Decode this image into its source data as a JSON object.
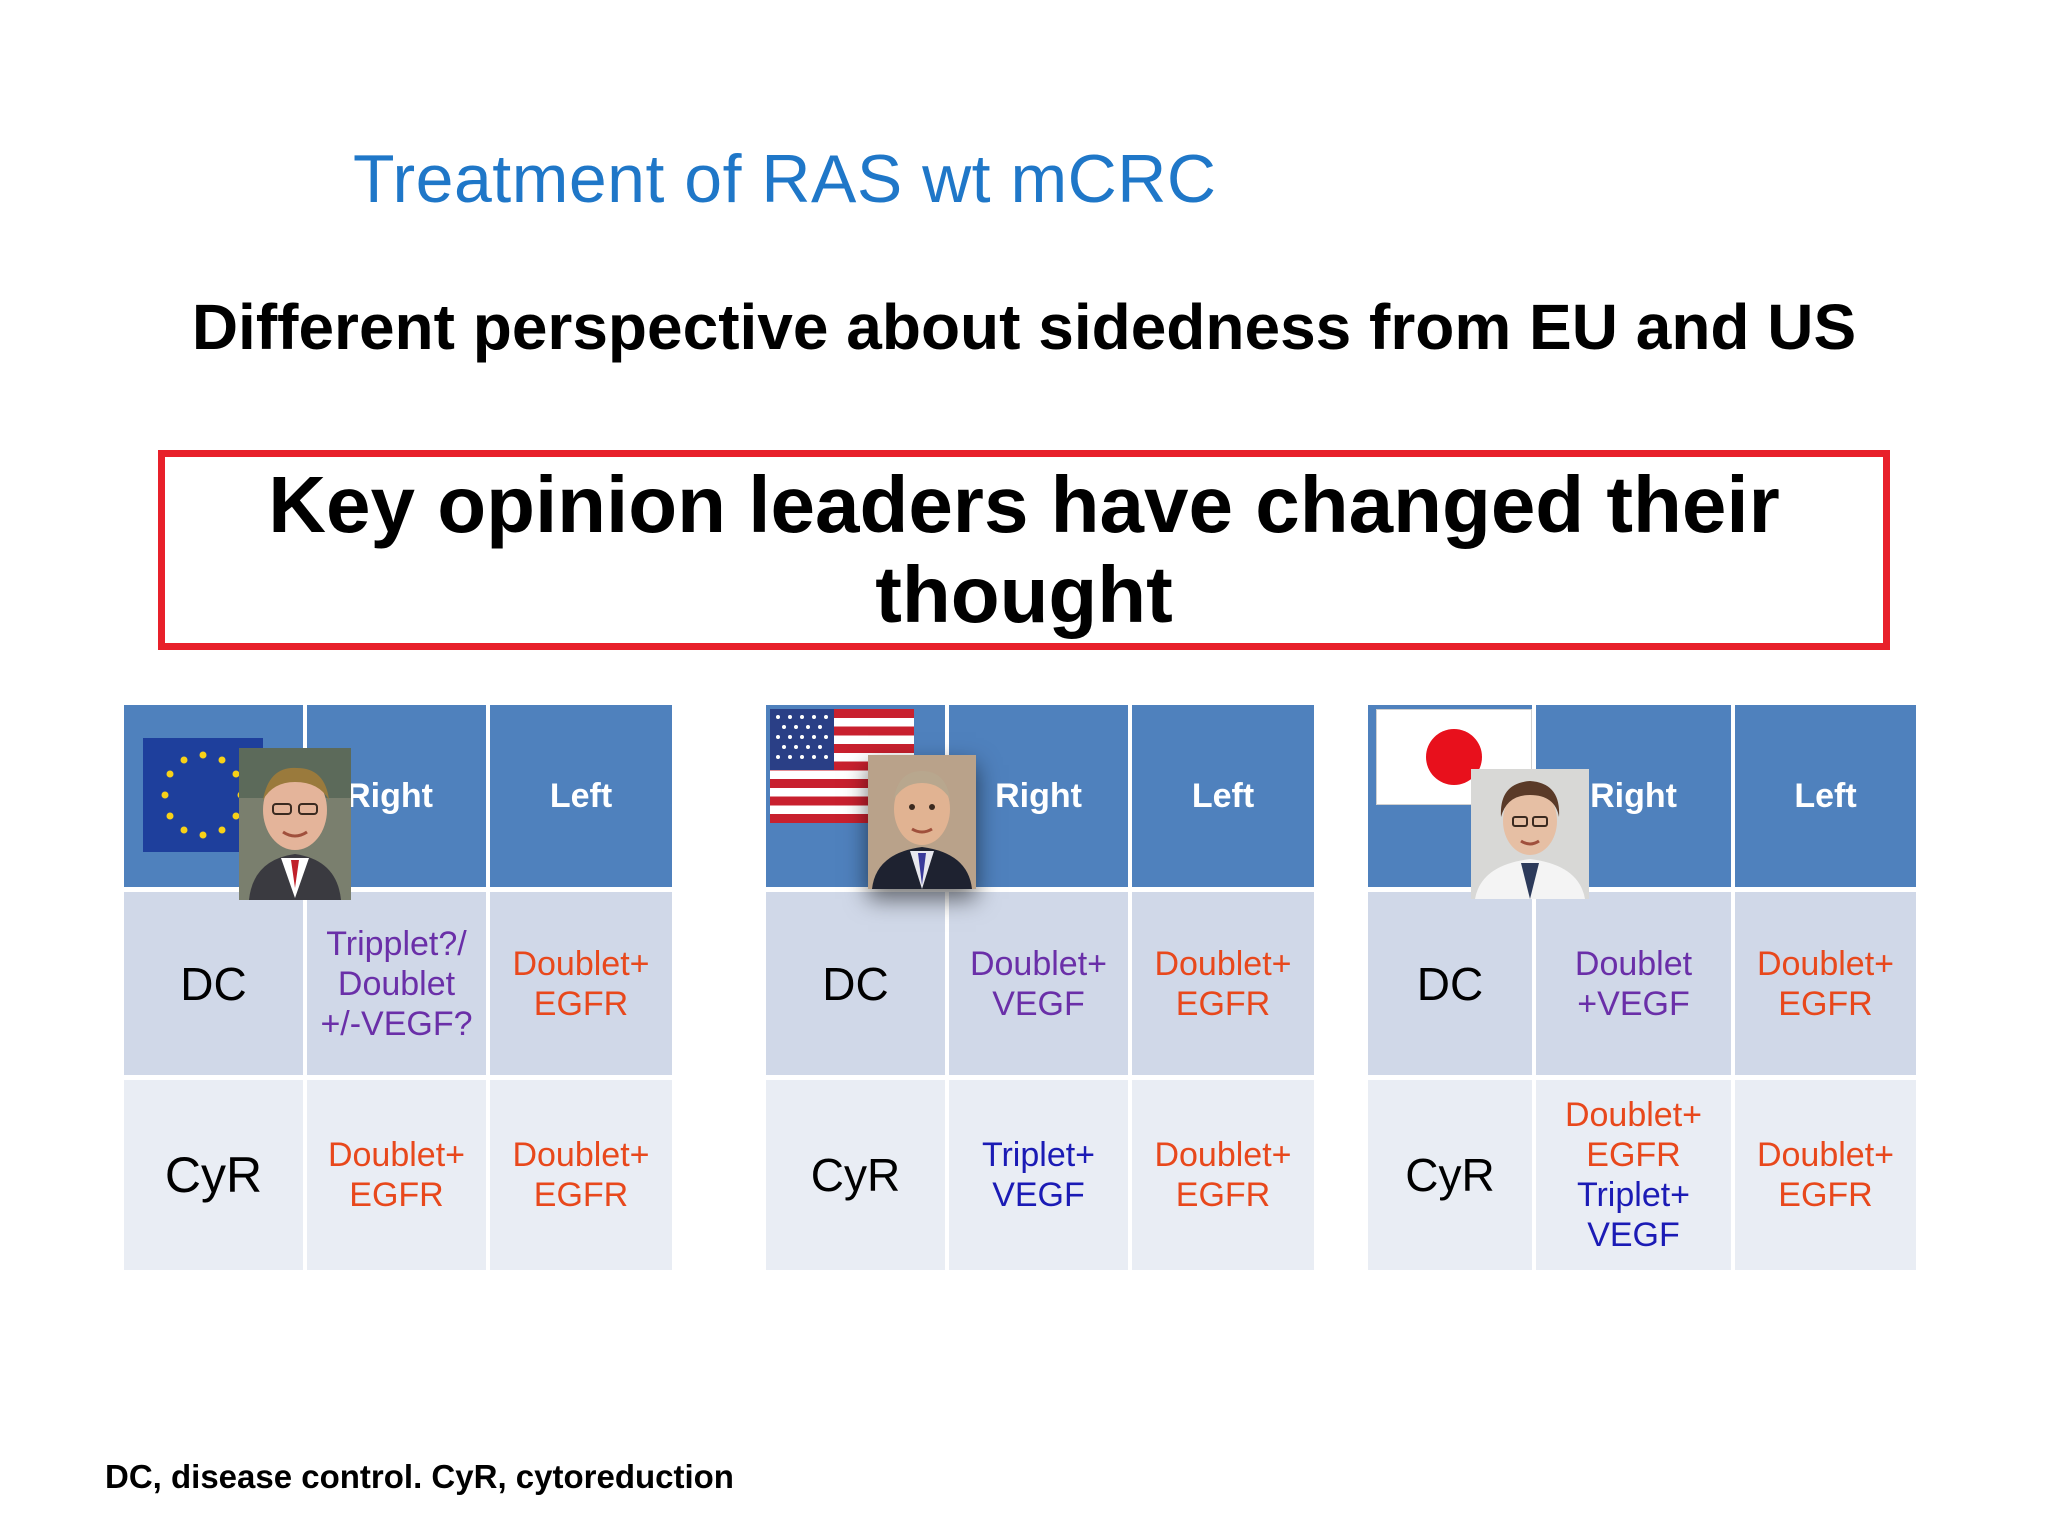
{
  "title": "Treatment of RAS wt mCRC",
  "subtitle": "Different perspective about sidedness from EU and US",
  "key_message": {
    "line1": "Key opinion leaders have changed their",
    "line2": "thought"
  },
  "tables": [
    {
      "region": "EU",
      "flag_icon": "eu-flag-icon",
      "header": {
        "right": "Right",
        "left": "Left"
      },
      "rows": [
        {
          "label": "DC",
          "right": [
            "Tripplet?/",
            "Doublet",
            "+/-VEGF?"
          ],
          "right_color": "#6a2fa8",
          "left": [
            "Doublet+",
            "EGFR"
          ],
          "left_color": "#e8481c"
        },
        {
          "label": "CyR",
          "right": [
            "Doublet+",
            "EGFR"
          ],
          "right_color": "#e8481c",
          "left": [
            "Doublet+",
            "EGFR"
          ],
          "left_color": "#e8481c"
        }
      ]
    },
    {
      "region": "US",
      "flag_icon": "us-flag-icon",
      "header": {
        "right": "Right",
        "left": "Left"
      },
      "rows": [
        {
          "label": "DC",
          "right": [
            "Doublet+",
            "VEGF"
          ],
          "right_color": "#6a2fa8",
          "left": [
            "Doublet+",
            "EGFR"
          ],
          "left_color": "#e8481c"
        },
        {
          "label": "CyR",
          "right": [
            "Triplet+",
            "VEGF"
          ],
          "right_color": "#1b1bb5",
          "left": [
            "Doublet+",
            "EGFR"
          ],
          "left_color": "#e8481c"
        }
      ]
    },
    {
      "region": "Japan",
      "flag_icon": "japan-flag-icon",
      "header": {
        "right": "Right",
        "left": "Left"
      },
      "rows": [
        {
          "label": "DC",
          "right": [
            "Doublet",
            "+VEGF"
          ],
          "right_color": "#6a2fa8",
          "left": [
            "Doublet+",
            "EGFR"
          ],
          "left_color": "#e8481c"
        },
        {
          "label": "CyR",
          "right_a": [
            "Doublet+",
            "EGFR"
          ],
          "right_a_color": "#e8481c",
          "right_b": [
            "Triplet+",
            "VEGF"
          ],
          "right_b_color": "#1b1bb5",
          "left": [
            "Doublet+",
            "EGFR"
          ],
          "left_color": "#e8481c"
        }
      ]
    }
  ],
  "footnote": "DC, disease control. CyR, cytoreduction",
  "colors": {
    "title": "#1f77c8",
    "box_border": "#e8202a",
    "header_bg": "#4f81bd",
    "row1_bg": "#d0d8e8",
    "row2_bg": "#e9edf4"
  }
}
